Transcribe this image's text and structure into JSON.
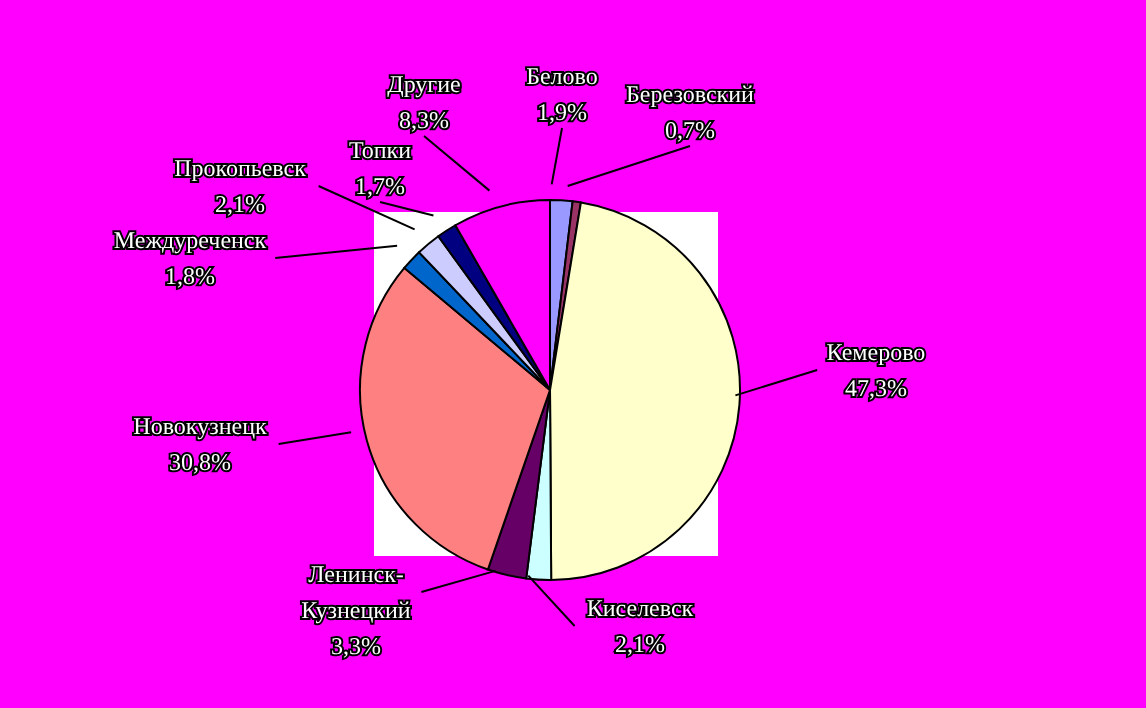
{
  "chart_data": {
    "type": "pie",
    "categories": [
      "Белово",
      "Березовский",
      "Кемерово",
      "Киселевск",
      "Ленинск-Кузнецкий",
      "Новокузнецк",
      "Междуреченск",
      "Прокопьевск",
      "Топки",
      "Другие"
    ],
    "values": [
      1.9,
      0.7,
      47.3,
      2.1,
      3.3,
      30.8,
      1.8,
      2.1,
      1.7,
      8.3
    ],
    "value_labels": [
      "1,9%",
      "0,7%",
      "47,3%",
      "2,1%",
      "3,3%",
      "30,8%",
      "1,8%",
      "2,1%",
      "1,7%",
      "8,3%"
    ],
    "colors": [
      "#9999ff",
      "#993366",
      "#ffffcc",
      "#ccffff",
      "#660066",
      "#ff8080",
      "#0066cc",
      "#ccccff",
      "#000080",
      "#ff00ff"
    ],
    "legend": false
  }
}
